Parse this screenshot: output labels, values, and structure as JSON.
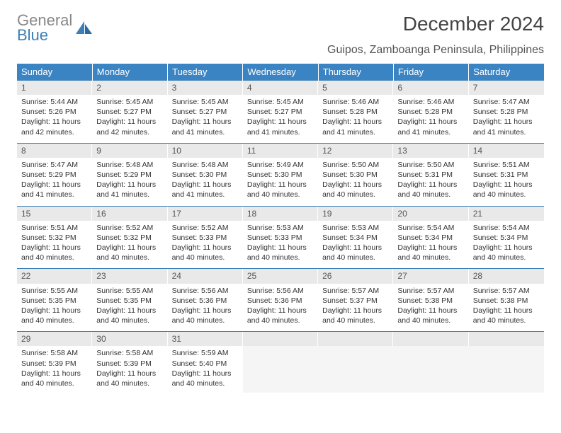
{
  "brand": {
    "line1": "General",
    "line2": "Blue"
  },
  "title": "December 2024",
  "subtitle": "Guipos, Zamboanga Peninsula, Philippines",
  "colors": {
    "header_bg": "#3b84c4",
    "header_fg": "#ffffff",
    "daynum_bg": "#e9e9e9",
    "rule": "#3b7fb6",
    "text": "#333333",
    "brand_gray": "#888888",
    "brand_blue": "#3b7fb6"
  },
  "dayNames": [
    "Sunday",
    "Monday",
    "Tuesday",
    "Wednesday",
    "Thursday",
    "Friday",
    "Saturday"
  ],
  "weeks": [
    [
      {
        "n": "1",
        "sr": "5:44 AM",
        "ss": "5:26 PM",
        "dl": "11 hours and 42 minutes."
      },
      {
        "n": "2",
        "sr": "5:45 AM",
        "ss": "5:27 PM",
        "dl": "11 hours and 42 minutes."
      },
      {
        "n": "3",
        "sr": "5:45 AM",
        "ss": "5:27 PM",
        "dl": "11 hours and 41 minutes."
      },
      {
        "n": "4",
        "sr": "5:45 AM",
        "ss": "5:27 PM",
        "dl": "11 hours and 41 minutes."
      },
      {
        "n": "5",
        "sr": "5:46 AM",
        "ss": "5:28 PM",
        "dl": "11 hours and 41 minutes."
      },
      {
        "n": "6",
        "sr": "5:46 AM",
        "ss": "5:28 PM",
        "dl": "11 hours and 41 minutes."
      },
      {
        "n": "7",
        "sr": "5:47 AM",
        "ss": "5:28 PM",
        "dl": "11 hours and 41 minutes."
      }
    ],
    [
      {
        "n": "8",
        "sr": "5:47 AM",
        "ss": "5:29 PM",
        "dl": "11 hours and 41 minutes."
      },
      {
        "n": "9",
        "sr": "5:48 AM",
        "ss": "5:29 PM",
        "dl": "11 hours and 41 minutes."
      },
      {
        "n": "10",
        "sr": "5:48 AM",
        "ss": "5:30 PM",
        "dl": "11 hours and 41 minutes."
      },
      {
        "n": "11",
        "sr": "5:49 AM",
        "ss": "5:30 PM",
        "dl": "11 hours and 40 minutes."
      },
      {
        "n": "12",
        "sr": "5:50 AM",
        "ss": "5:30 PM",
        "dl": "11 hours and 40 minutes."
      },
      {
        "n": "13",
        "sr": "5:50 AM",
        "ss": "5:31 PM",
        "dl": "11 hours and 40 minutes."
      },
      {
        "n": "14",
        "sr": "5:51 AM",
        "ss": "5:31 PM",
        "dl": "11 hours and 40 minutes."
      }
    ],
    [
      {
        "n": "15",
        "sr": "5:51 AM",
        "ss": "5:32 PM",
        "dl": "11 hours and 40 minutes."
      },
      {
        "n": "16",
        "sr": "5:52 AM",
        "ss": "5:32 PM",
        "dl": "11 hours and 40 minutes."
      },
      {
        "n": "17",
        "sr": "5:52 AM",
        "ss": "5:33 PM",
        "dl": "11 hours and 40 minutes."
      },
      {
        "n": "18",
        "sr": "5:53 AM",
        "ss": "5:33 PM",
        "dl": "11 hours and 40 minutes."
      },
      {
        "n": "19",
        "sr": "5:53 AM",
        "ss": "5:34 PM",
        "dl": "11 hours and 40 minutes."
      },
      {
        "n": "20",
        "sr": "5:54 AM",
        "ss": "5:34 PM",
        "dl": "11 hours and 40 minutes."
      },
      {
        "n": "21",
        "sr": "5:54 AM",
        "ss": "5:34 PM",
        "dl": "11 hours and 40 minutes."
      }
    ],
    [
      {
        "n": "22",
        "sr": "5:55 AM",
        "ss": "5:35 PM",
        "dl": "11 hours and 40 minutes."
      },
      {
        "n": "23",
        "sr": "5:55 AM",
        "ss": "5:35 PM",
        "dl": "11 hours and 40 minutes."
      },
      {
        "n": "24",
        "sr": "5:56 AM",
        "ss": "5:36 PM",
        "dl": "11 hours and 40 minutes."
      },
      {
        "n": "25",
        "sr": "5:56 AM",
        "ss": "5:36 PM",
        "dl": "11 hours and 40 minutes."
      },
      {
        "n": "26",
        "sr": "5:57 AM",
        "ss": "5:37 PM",
        "dl": "11 hours and 40 minutes."
      },
      {
        "n": "27",
        "sr": "5:57 AM",
        "ss": "5:38 PM",
        "dl": "11 hours and 40 minutes."
      },
      {
        "n": "28",
        "sr": "5:57 AM",
        "ss": "5:38 PM",
        "dl": "11 hours and 40 minutes."
      }
    ],
    [
      {
        "n": "29",
        "sr": "5:58 AM",
        "ss": "5:39 PM",
        "dl": "11 hours and 40 minutes."
      },
      {
        "n": "30",
        "sr": "5:58 AM",
        "ss": "5:39 PM",
        "dl": "11 hours and 40 minutes."
      },
      {
        "n": "31",
        "sr": "5:59 AM",
        "ss": "5:40 PM",
        "dl": "11 hours and 40 minutes."
      },
      {
        "empty": true
      },
      {
        "empty": true
      },
      {
        "empty": true
      },
      {
        "empty": true
      }
    ]
  ],
  "labels": {
    "sunrise": "Sunrise: ",
    "sunset": "Sunset: ",
    "daylight": "Daylight: "
  }
}
